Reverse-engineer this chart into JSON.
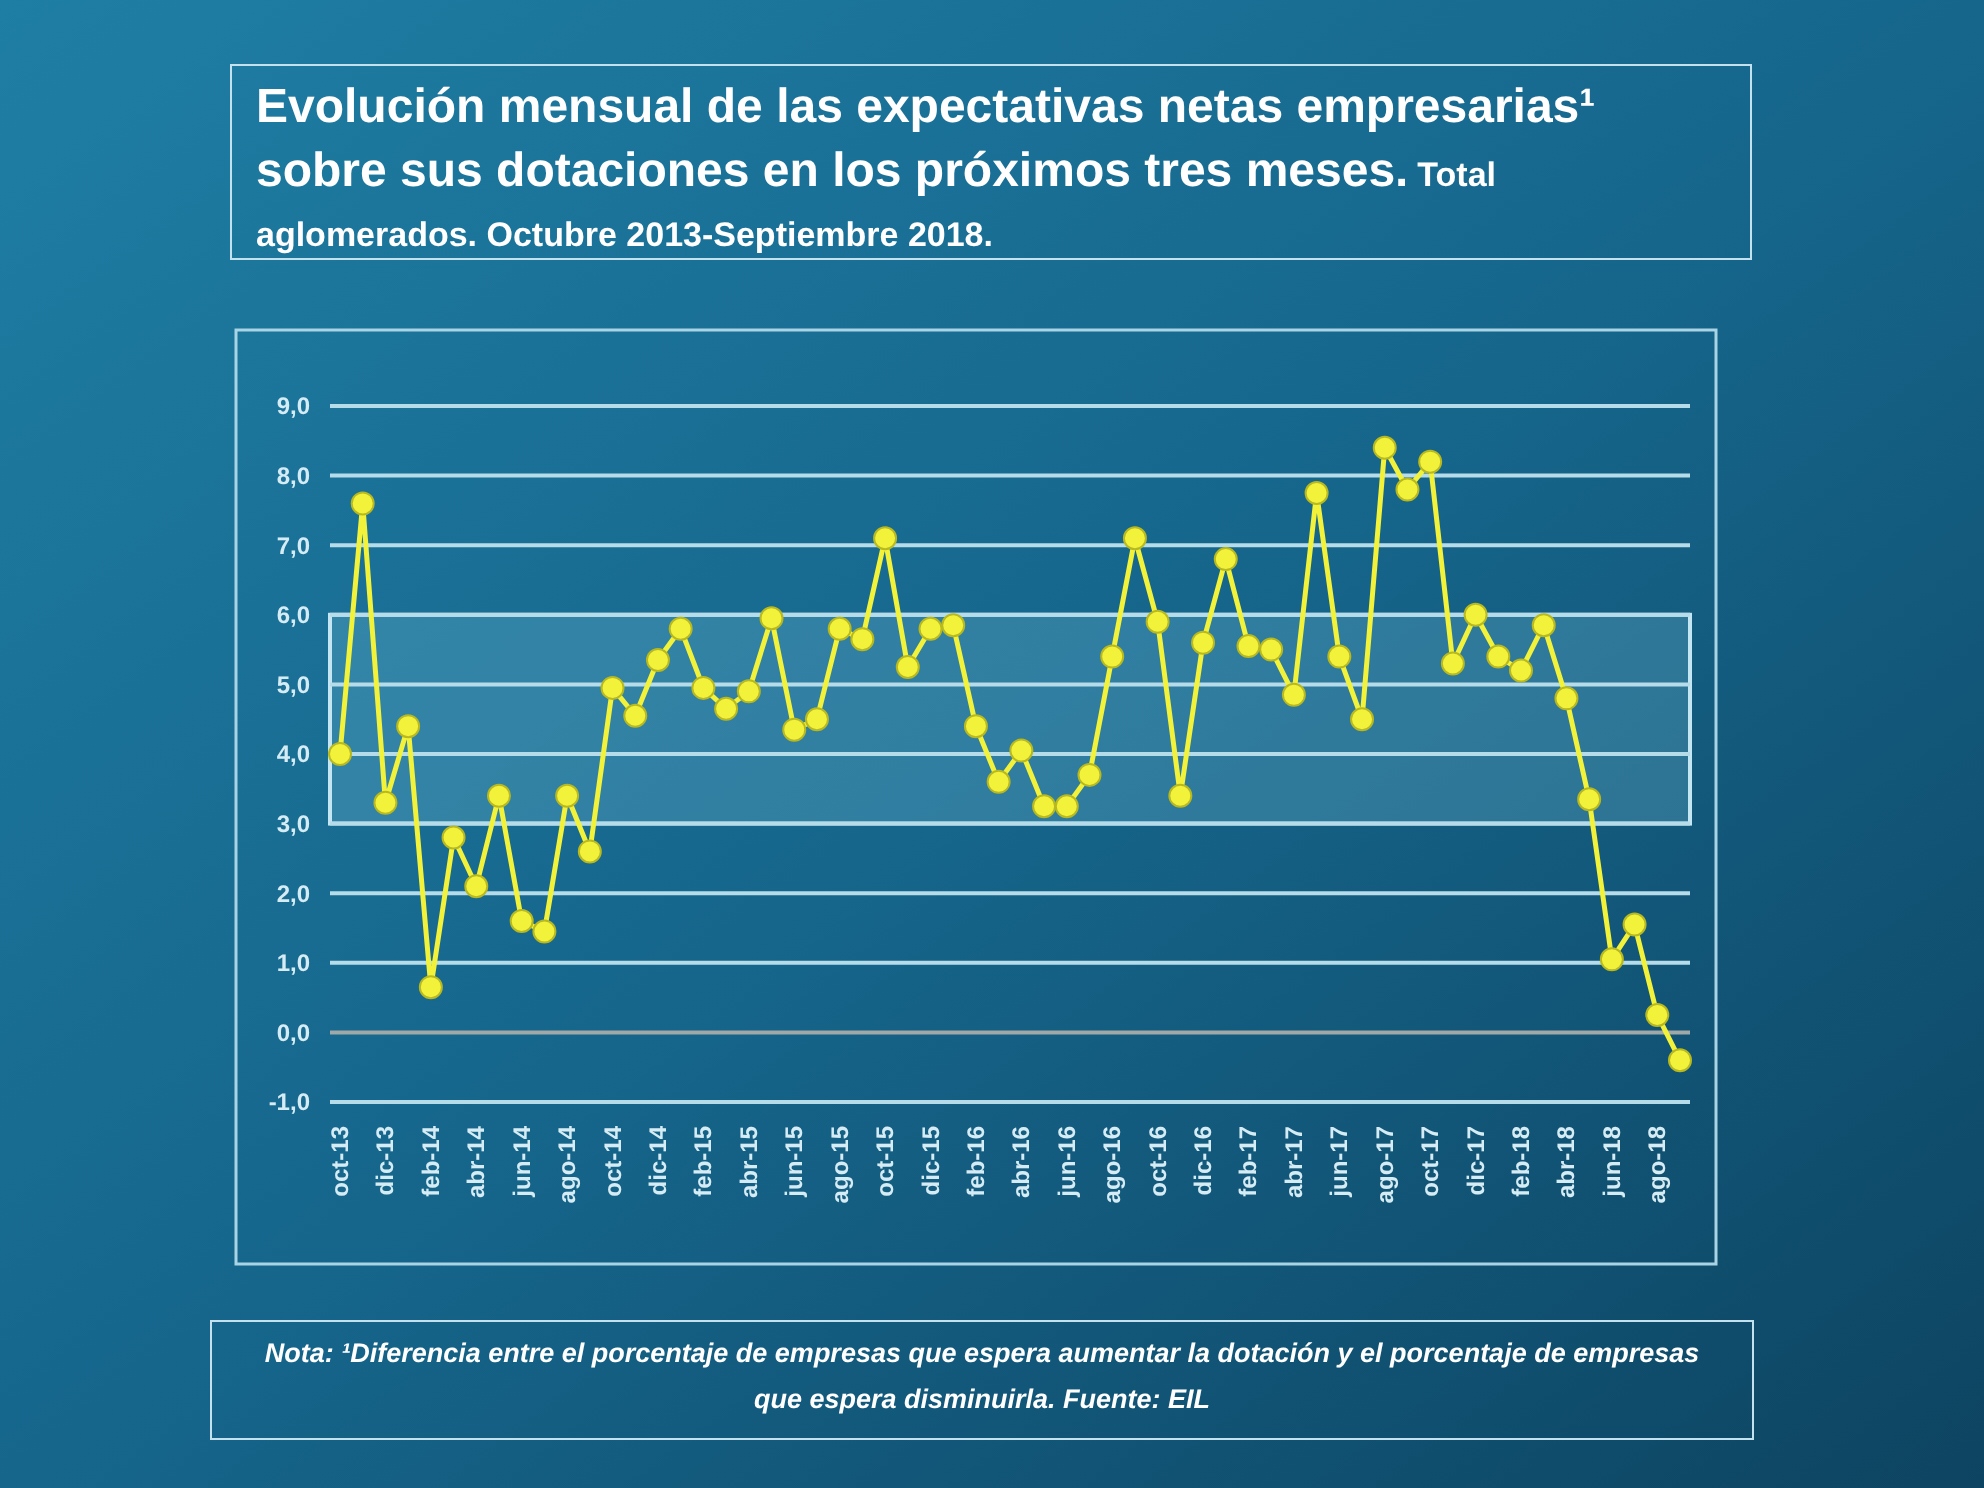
{
  "chart_data": {
    "type": "line",
    "title": "Evolución mensual de las expectativas netas empresarias¹ sobre sus dotaciones en los próximos tres meses.",
    "subtitle": "Total aglomerados. Octubre 2013-Septiembre 2018.",
    "annotations": [
      "Nota: ¹Diferencia entre el porcentaje de empresas que espera aumentar la dotación y el porcentaje de empresas que espera disminuirla. Fuente: EIL"
    ],
    "categories": [
      "oct-13",
      null,
      "dic-13",
      null,
      "feb-14",
      null,
      "abr-14",
      null,
      "jun-14",
      null,
      "ago-14",
      null,
      "oct-14",
      null,
      "dic-14",
      null,
      "feb-15",
      null,
      "abr-15",
      null,
      "jun-15",
      null,
      "ago-15",
      null,
      "oct-15",
      null,
      "dic-15",
      null,
      "feb-16",
      null,
      "abr-16",
      null,
      "jun-16",
      null,
      "ago-16",
      null,
      "oct-16",
      null,
      "dic-16",
      null,
      "feb-17",
      null,
      "abr-17",
      null,
      "jun-17",
      null,
      "ago-17",
      null,
      "oct-17",
      null,
      "dic-17",
      null,
      "feb-18",
      null,
      "abr-18",
      null,
      "jun-18",
      null,
      "ago-18",
      null
    ],
    "series": [
      {
        "color": "#f2f23a",
        "values": [
          4.0,
          7.6,
          3.3,
          4.4,
          0.65,
          2.8,
          2.1,
          3.4,
          1.6,
          1.45,
          3.4,
          2.6,
          4.95,
          4.55,
          5.35,
          5.8,
          4.95,
          4.65,
          4.9,
          5.95,
          4.35,
          4.5,
          5.8,
          5.65,
          7.1,
          5.25,
          5.8,
          5.85,
          4.4,
          3.6,
          4.05,
          3.25,
          3.25,
          3.7,
          5.4,
          7.1,
          5.9,
          3.4,
          5.6,
          6.8,
          5.55,
          5.5,
          4.85,
          7.75,
          5.4,
          4.5,
          8.4,
          7.8,
          8.2,
          5.3,
          6.0,
          5.4,
          5.2,
          5.85,
          4.8,
          3.35,
          1.05,
          1.55,
          0.25,
          -0.4
        ]
      }
    ],
    "ylim": [
      -1,
      9
    ],
    "yticks": [
      {
        "value": -1,
        "label": "-1,0"
      },
      {
        "value": 0,
        "label": "0,0"
      },
      {
        "value": 1,
        "label": "1,0"
      },
      {
        "value": 2,
        "label": "2,0"
      },
      {
        "value": 3,
        "label": "3,0"
      },
      {
        "value": 4,
        "label": "4,0"
      },
      {
        "value": 5,
        "label": "5,0"
      },
      {
        "value": 6,
        "label": "6,0"
      },
      {
        "value": 7,
        "label": "7,0"
      },
      {
        "value": 8,
        "label": "8,0"
      },
      {
        "value": 9,
        "label": "9,0"
      }
    ],
    "bands": [
      {
        "axis": "y",
        "from": 3,
        "to": 6,
        "color": "#7fc8e0"
      }
    ],
    "grid": "y",
    "marker": "circle",
    "line_style": "solid"
  }
}
